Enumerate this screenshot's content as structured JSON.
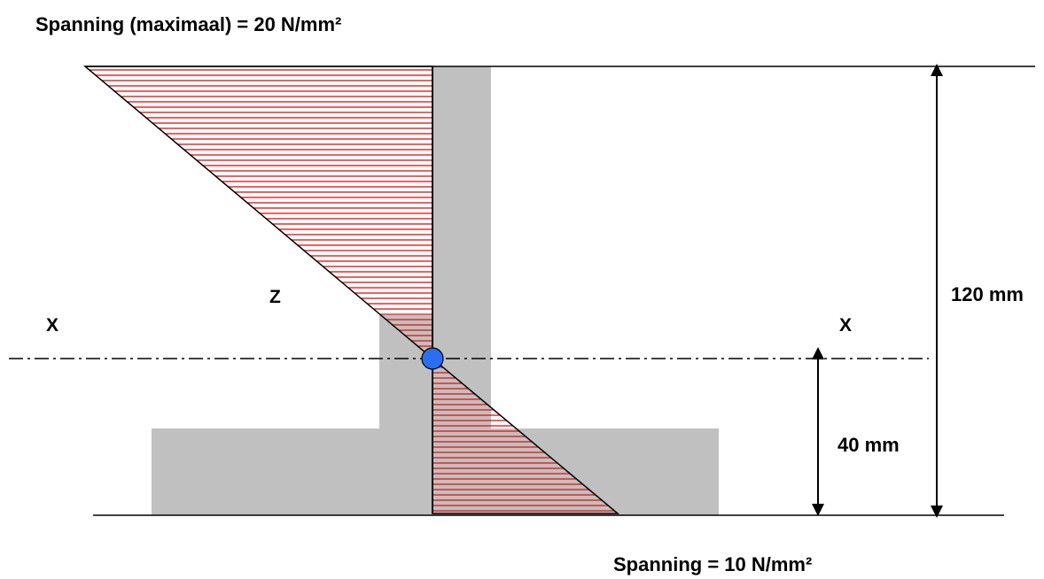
{
  "labels": {
    "max_stress": "Spanning (maximaal) = 20 N/mm²",
    "bottom_stress": "Spanning = 10 N/mm²",
    "height_total": "120 mm",
    "height_na": "40 mm",
    "axis_left": "X",
    "axis_right": "X",
    "z_label": "Z"
  },
  "colors": {
    "section_fill": "#c0c0c0",
    "hatch": "#e02020",
    "neutral_axis_marker": "#2a6ff0",
    "line": "#000000"
  }
}
